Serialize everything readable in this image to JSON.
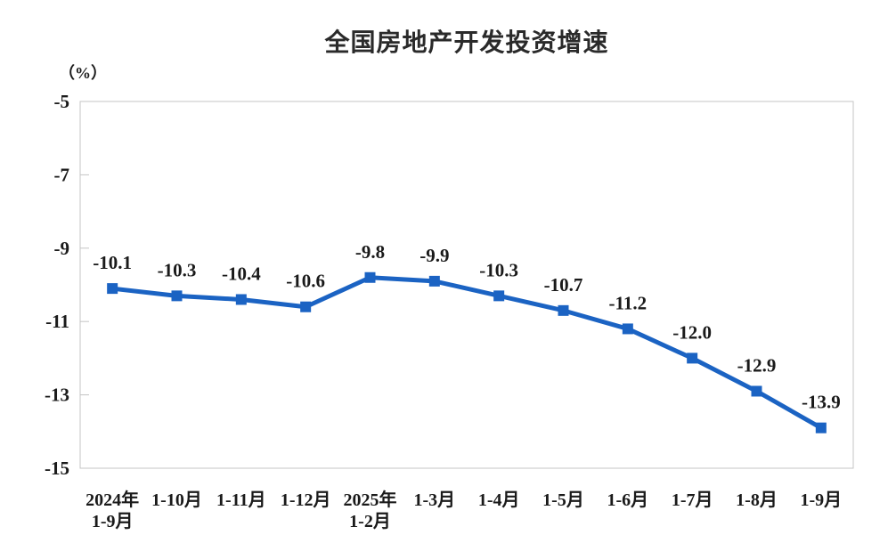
{
  "page": {
    "background": "#ffffff"
  },
  "chart_data": {
    "type": "line",
    "title": "全国房地产开发投资增速",
    "unit_label": "（%）",
    "categories": [
      [
        "2024年",
        "1-9月"
      ],
      [
        "1-10月"
      ],
      [
        "1-11月"
      ],
      [
        "1-12月"
      ],
      [
        "2025年",
        "1-2月"
      ],
      [
        "1-3月"
      ],
      [
        "1-4月"
      ],
      [
        "1-5月"
      ],
      [
        "1-6月"
      ],
      [
        "1-7月"
      ],
      [
        "1-8月"
      ],
      [
        "1-9月"
      ]
    ],
    "series": [
      {
        "name": "全国房地产开发投资增速",
        "values": [
          -10.1,
          -10.3,
          -10.4,
          -10.6,
          -9.8,
          -9.9,
          -10.3,
          -10.7,
          -11.2,
          -12.0,
          -12.9,
          -13.9
        ]
      }
    ],
    "data_labels": [
      "-10.1",
      "-10.3",
      "-10.4",
      "-10.6",
      "-9.8",
      "-9.9",
      "-10.3",
      "-10.7",
      "-11.2",
      "-12.0",
      "-12.9",
      "-13.9"
    ],
    "y_ticks": [
      -5,
      -7,
      -9,
      -11,
      -13,
      -15
    ],
    "y_tick_labels": [
      "-5",
      "-7",
      "-9",
      "-11",
      "-13",
      "-15"
    ],
    "ylim": [
      -15,
      -5
    ],
    "grid": false,
    "legend": "none",
    "marker": "square",
    "colors": {
      "line": "#1b63c3",
      "marker": "#1b63c3",
      "axis_border": "#c4c4c4",
      "text": "#1a1a1a"
    }
  }
}
